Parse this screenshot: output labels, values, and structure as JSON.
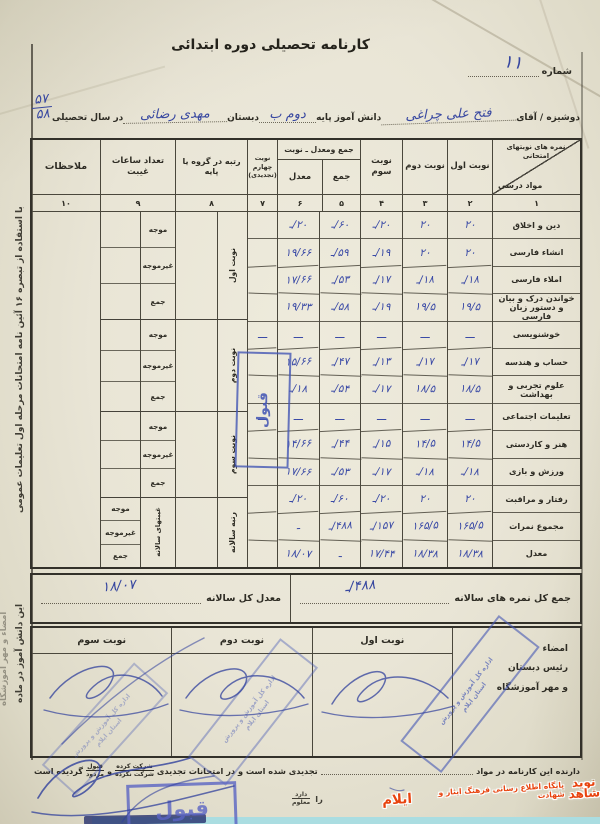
{
  "page": {
    "title": "کارنامه تحصیلی دوره ابتدائی",
    "number_label": "شماره",
    "number_value": "۱۱",
    "student_line": {
      "prefix": "دوشیزه / آقای",
      "name": "فتح علی چراغی",
      "middle": "دانش آموز پایه",
      "grade": "دوم ب",
      "school_label": "دبستان",
      "school": "مهدی رضائی",
      "year_label": "در سال تحصیلی",
      "year_top": "۵۷",
      "year_bottom": "۵۸"
    }
  },
  "table": {
    "corner": {
      "top": "نمره های نوبتهای امتحانی",
      "bottom": "مواد درسی"
    },
    "col_headers": {
      "term1": "نوبت اول",
      "term2": "نوبت دوم",
      "term3": "نوبت سوم",
      "sum_avg_title": "جمع ومعدل ـ نوبت",
      "sum": "جمع",
      "avg": "معدل",
      "term4": "نوبت چهارم (تجدیدی)",
      "rank": "رتبه در گروه یا پایه",
      "absence": "تعداد ساعات غیبت",
      "remarks": "ملاحظات"
    },
    "col_numbers": [
      "۱",
      "۲",
      "۳",
      "۴",
      "۵",
      "۶",
      "۷",
      "۸",
      "۹",
      "۱۰"
    ],
    "rows": [
      {
        "subject": "دین و اخلاق",
        "t1": "۲۰",
        "t2": "۲۰",
        "t3": "۲۰/ـ",
        "sum": "۶۰/ـ",
        "avg": "۲۰/ـ",
        "t4": ""
      },
      {
        "subject": "انشاء فارسی",
        "t1": "۲۰",
        "t2": "۲۰",
        "t3": "۱۹/ـ",
        "sum": "۵۹/ـ",
        "avg": "۱۹/۶۶",
        "t4": ""
      },
      {
        "subject": "املاء فارسی",
        "t1": "۱۸/ـ",
        "t2": "۱۸/ـ",
        "t3": "۱۷/ـ",
        "sum": "۵۳/ـ",
        "avg": "۱۷/۶۶",
        "t4": ""
      },
      {
        "subject": "خواندن درک و بیان و دستور زبان فارسی",
        "t1": "۱۹/۵",
        "t2": "۱۹/۵",
        "t3": "۱۹/ـ",
        "sum": "۵۸/ـ",
        "avg": "۱۹/۳۳",
        "t4": ""
      },
      {
        "subject": "خوشنویسی",
        "t1": "ـــ",
        "t2": "ـــ",
        "t3": "ـــ",
        "sum": "ـــ",
        "avg": "ـــ",
        "t4": "ـــ"
      },
      {
        "subject": "حساب و هندسه",
        "t1": "۱۷/ـ",
        "t2": "۱۷/ـ",
        "t3": "۱۳/ـ",
        "sum": "۴۷/ـ",
        "avg": "۱۵/۶۶",
        "t4": ""
      },
      {
        "subject": "علوم تجربی و بهداشت",
        "t1": "۱۸/۵",
        "t2": "۱۸/۵",
        "t3": "۱۷/ـ",
        "sum": "۵۴/ـ",
        "avg": "۱۸/ـ",
        "t4": ""
      },
      {
        "subject": "تعلیمات اجتماعی",
        "t1": "ـــ",
        "t2": "ـــ",
        "t3": "ـــ",
        "sum": "ـــ",
        "avg": "ـــ",
        "t4": "ـــ"
      },
      {
        "subject": "هنر و کاردستی",
        "t1": "۱۴/۵",
        "t2": "۱۴/۵",
        "t3": "۱۵/ـ",
        "sum": "۴۴/ـ",
        "avg": "۱۴/۶۶",
        "t4": ""
      },
      {
        "subject": "ورزش و بازی",
        "t1": "۱۸/ـ",
        "t2": "۱۸/ـ",
        "t3": "۱۷/ـ",
        "sum": "۵۳/ـ",
        "avg": "۱۷/۶۶",
        "t4": ""
      },
      {
        "subject": "رفتار و مراقبت",
        "t1": "۲۰",
        "t2": "۲۰",
        "t3": "۲۰/ـ",
        "sum": "۶۰/ـ",
        "avg": "۲۰/ـ",
        "t4": ""
      },
      {
        "subject": "مجموع نمرات",
        "t1": "۱۶۵/۵",
        "t2": "۱۶۵/۵",
        "t3": "۱۵۷/ـ",
        "sum": "۴۸۸/ـ",
        "avg": "ـ",
        "t4": ""
      },
      {
        "subject": "معدل",
        "t1": "۱۸/۳۸",
        "t2": "۱۸/۳۸",
        "t3": "۱۷/۴۴",
        "sum": "ـ",
        "avg": "۱۸/۰۷",
        "t4": ""
      }
    ],
    "rank_groups": [
      "نوبت اول",
      "نوبت دوم",
      "نوبت سوم",
      "رتبه سالانه"
    ],
    "absence_row_labels": [
      "موجه",
      "غیرموجه",
      "جمع"
    ],
    "annual_absence_label": "غیبتهای سالانه"
  },
  "totals": {
    "sum_label": "جمع کل نمره های سالانه",
    "sum_value": "۴۸۸/ـ",
    "avg_label": "معدل کل سالانه",
    "avg_value": "۱۸/۰۷"
  },
  "signature": {
    "terms": [
      "نوبت اول",
      "نوبت دوم",
      "نوبت سوم"
    ],
    "label_lines": [
      "امضاء",
      "رئیس دبستان",
      "و مهر آموزشگاه"
    ]
  },
  "notes": {
    "retake_pre": "دارنده این کارنامه در مواد",
    "retake_mid": "تجدیدی شده است و در امتحانات تجدیدی",
    "opt1_top": "شرکت کرده",
    "opt1_bottom": "شرکت نکرده",
    "conj": "و",
    "opt2_top": "قبول",
    "opt2_bottom": "مردود",
    "retake_end": "گردیده است",
    "fragment": "را",
    "frag_top": "دارد",
    "frag_bottom": "معلوم"
  },
  "margin_notes": {
    "note1": "با استفاده از تبصره ۱۶ آئین نامه امتحانات مرحله اول تعلیمات عمومی",
    "note2": "این دانش آموز در ماده",
    "note3": "امضاء و مهر آموزشگاه"
  },
  "stamps": {
    "approved": "قبول",
    "approved_bottom": "قبول",
    "office_lines": [
      "اداره کل آموزش و پرورش",
      "استان ایلام"
    ]
  },
  "watermark": {
    "logo_line1": "نوید",
    "logo_line2": "شاهد",
    "text": "پایگاه اطلاع رسانی فرهنگ ایثار و شهادت",
    "ilam": "ایلام"
  },
  "colors": {
    "paper": "#e9e5d6",
    "ink": "#2e2c24",
    "table_line": "#45423a",
    "pen_blue": "#3a4aa6",
    "stamp_blue": "#4456b4",
    "watermark_orange": "#e8430e",
    "strip_cyan": "#aadde1"
  }
}
